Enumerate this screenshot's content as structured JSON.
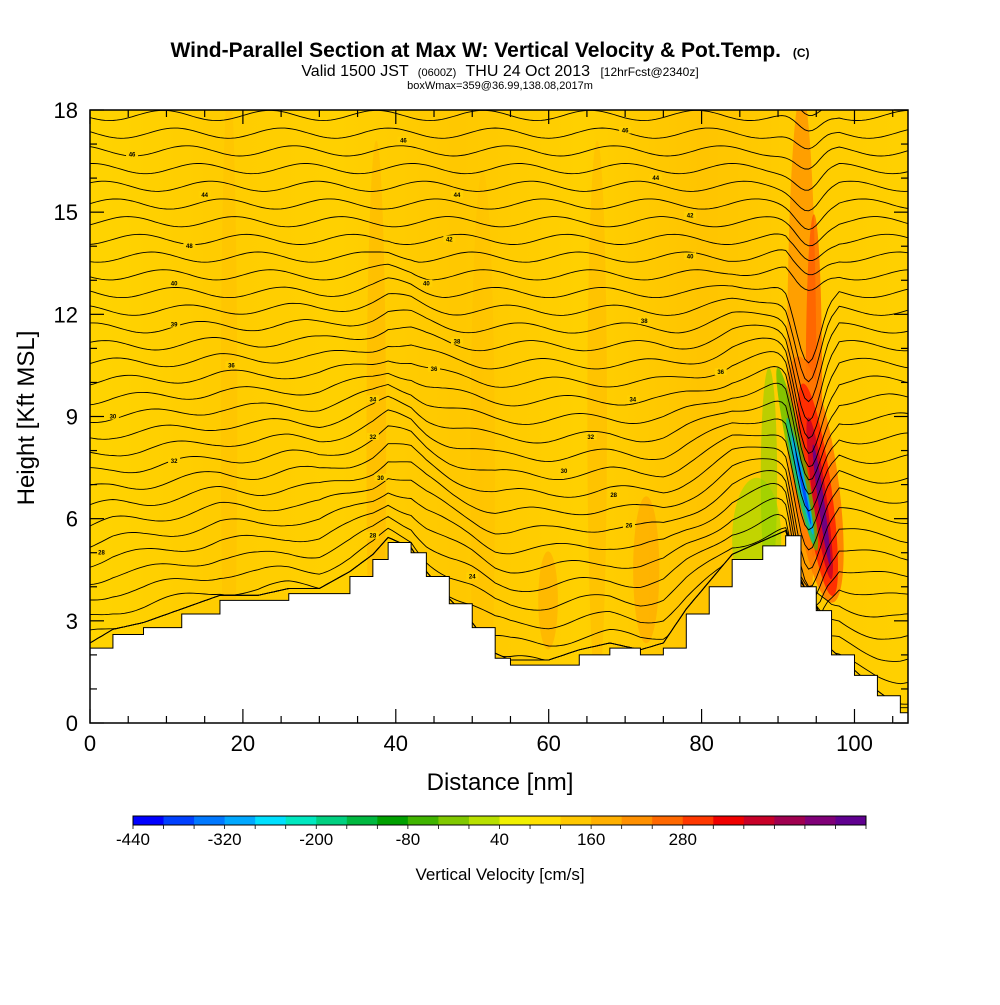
{
  "header": {
    "title": "Wind-Parallel Section at Max W: Vertical Velocity & Pot.Temp.",
    "title_mark": "(C)",
    "valid_pre": "Valid 1500 JST",
    "valid_small": "(0600Z)",
    "valid_post": "THU 24 Oct 2013",
    "forecast": "[12hrFcst@2340z]",
    "boxline": "boxWmax=359@36.99,138.08,2017m"
  },
  "chart_data": {
    "type": "contour-section",
    "xlabel": "Distance [nm]",
    "ylabel": "Height [Kft MSL]",
    "xlim": [
      0,
      107
    ],
    "ylim": [
      0,
      18
    ],
    "x_ticks": [
      0,
      20,
      40,
      60,
      80,
      100
    ],
    "y_ticks": [
      0,
      3,
      6,
      9,
      12,
      15,
      18
    ],
    "terrain_kft": [
      [
        0,
        2.2
      ],
      [
        3,
        2.6
      ],
      [
        7,
        2.8
      ],
      [
        12,
        3.2
      ],
      [
        17,
        3.6
      ],
      [
        22,
        3.6
      ],
      [
        26,
        3.8
      ],
      [
        30,
        3.8
      ],
      [
        34,
        4.3
      ],
      [
        37,
        4.8
      ],
      [
        39,
        5.3
      ],
      [
        42,
        5.0
      ],
      [
        44,
        4.3
      ],
      [
        47,
        3.5
      ],
      [
        50,
        2.8
      ],
      [
        53,
        1.9
      ],
      [
        55,
        1.7
      ],
      [
        60,
        1.7
      ],
      [
        64,
        2.0
      ],
      [
        68,
        2.2
      ],
      [
        72,
        2.0
      ],
      [
        75,
        2.2
      ],
      [
        78,
        3.2
      ],
      [
        81,
        4.0
      ],
      [
        84,
        4.8
      ],
      [
        88,
        5.2
      ],
      [
        91,
        5.5
      ],
      [
        93,
        4.0
      ],
      [
        95,
        3.3
      ],
      [
        97,
        2.0
      ],
      [
        100,
        1.4
      ],
      [
        103,
        0.8
      ],
      [
        106,
        0.3
      ],
      [
        107,
        0.3
      ]
    ],
    "theta_labels": [
      {
        "x": 5.5,
        "y": 16.7,
        "v": "46"
      },
      {
        "x": 15,
        "y": 15.5,
        "v": "44"
      },
      {
        "x": 13,
        "y": 14.0,
        "v": "48"
      },
      {
        "x": 11,
        "y": 12.9,
        "v": "40"
      },
      {
        "x": 11,
        "y": 11.7,
        "v": "39"
      },
      {
        "x": 18.5,
        "y": 10.5,
        "v": "36"
      },
      {
        "x": 3,
        "y": 9.0,
        "v": "30"
      },
      {
        "x": 11,
        "y": 7.7,
        "v": "32"
      },
      {
        "x": 1.5,
        "y": 5.0,
        "v": "28"
      },
      {
        "x": 41,
        "y": 17.1,
        "v": "46"
      },
      {
        "x": 48,
        "y": 15.5,
        "v": "44"
      },
      {
        "x": 47,
        "y": 14.2,
        "v": "42"
      },
      {
        "x": 44,
        "y": 12.9,
        "v": "40"
      },
      {
        "x": 48,
        "y": 11.2,
        "v": "38"
      },
      {
        "x": 45,
        "y": 10.4,
        "v": "36"
      },
      {
        "x": 37,
        "y": 9.5,
        "v": "34"
      },
      {
        "x": 37,
        "y": 8.4,
        "v": "32"
      },
      {
        "x": 38,
        "y": 7.2,
        "v": "30"
      },
      {
        "x": 37,
        "y": 5.5,
        "v": "28"
      },
      {
        "x": 50,
        "y": 4.3,
        "v": "24"
      },
      {
        "x": 70,
        "y": 17.4,
        "v": "46"
      },
      {
        "x": 74,
        "y": 16.0,
        "v": "44"
      },
      {
        "x": 78.5,
        "y": 14.9,
        "v": "42"
      },
      {
        "x": 78.5,
        "y": 13.7,
        "v": "40"
      },
      {
        "x": 72.5,
        "y": 11.8,
        "v": "38"
      },
      {
        "x": 82.5,
        "y": 10.3,
        "v": "36"
      },
      {
        "x": 71,
        "y": 9.5,
        "v": "34"
      },
      {
        "x": 65.5,
        "y": 8.4,
        "v": "32"
      },
      {
        "x": 62,
        "y": 7.4,
        "v": "30"
      },
      {
        "x": 68.5,
        "y": 6.7,
        "v": "28"
      },
      {
        "x": 70.5,
        "y": 5.8,
        "v": "26"
      }
    ],
    "colorbar": {
      "label": "Vertical Velocity [cm/s]",
      "min": -440,
      "step": 40,
      "colors": [
        "#0000ff",
        "#0040ff",
        "#0078ff",
        "#00a8ff",
        "#00e0ff",
        "#00e8c0",
        "#00d080",
        "#00b840",
        "#00a000",
        "#40b400",
        "#80c800",
        "#b8e000",
        "#f0f000",
        "#ffe000",
        "#ffc800",
        "#ffb000",
        "#ff9000",
        "#ff6800",
        "#ff3800",
        "#f00000",
        "#c80028",
        "#a00050",
        "#800078",
        "#600090"
      ],
      "tick_labels": [
        "-440",
        "-320",
        "-200",
        "-80",
        "40",
        "160",
        "280"
      ]
    }
  }
}
